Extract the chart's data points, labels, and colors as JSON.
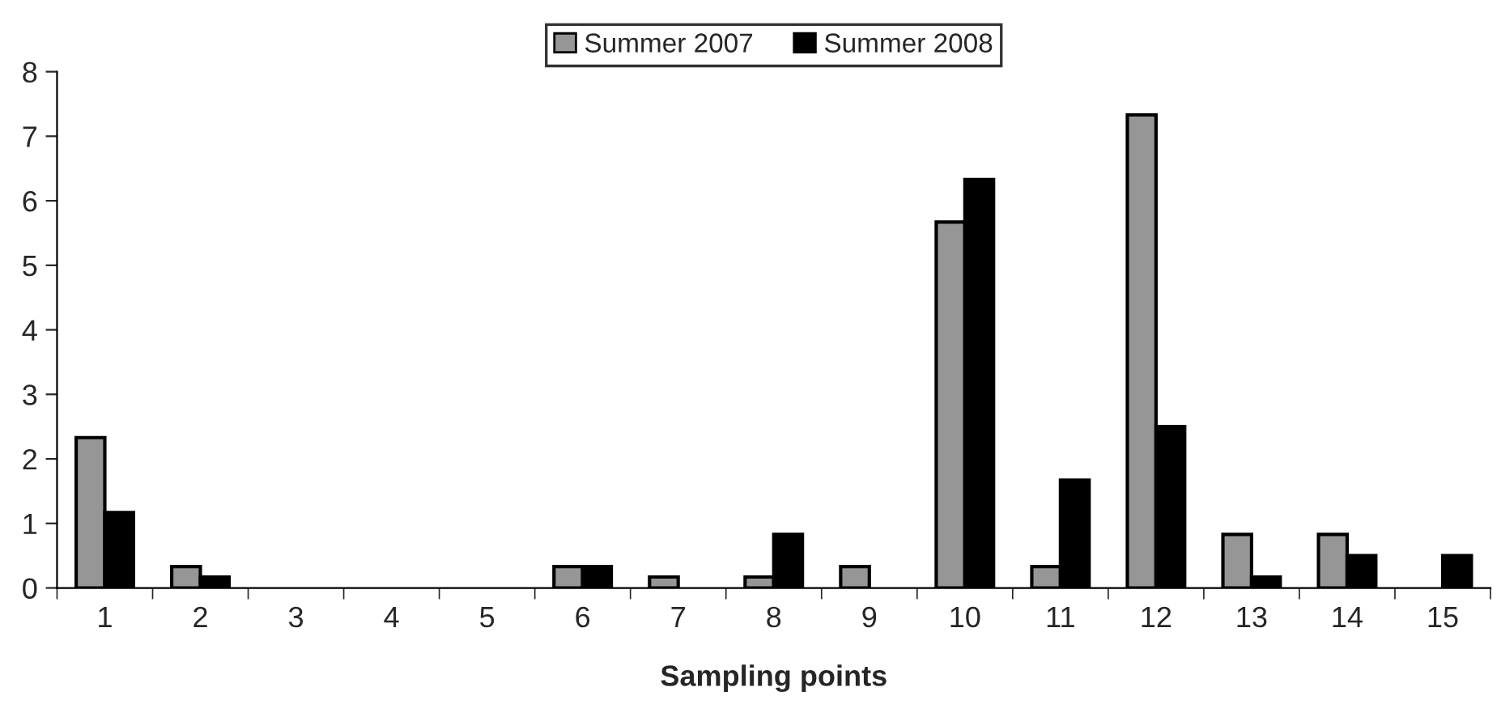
{
  "chart_data": {
    "type": "bar",
    "xlabel": "Sampling points",
    "categories": [
      "1",
      "2",
      "3",
      "4",
      "5",
      "6",
      "7",
      "8",
      "9",
      "10",
      "11",
      "12",
      "13",
      "14",
      "15"
    ],
    "series": [
      {
        "name": "Summer 2007",
        "color": "#969696",
        "values": [
          2.33,
          0.33,
          0,
          0,
          0,
          0.33,
          0.17,
          0.17,
          0.33,
          5.67,
          0.33,
          7.33,
          0.83,
          0.83,
          0
        ]
      },
      {
        "name": "Summer 2008",
        "color": "#000000",
        "values": [
          1.17,
          0.17,
          0,
          0,
          0,
          0.33,
          0,
          0.83,
          0,
          6.33,
          1.67,
          2.5,
          0.17,
          0.5,
          0.5
        ]
      }
    ],
    "ylim": [
      0,
      8
    ],
    "yticks": [
      0,
      1,
      2,
      3,
      4,
      5,
      6,
      7,
      8
    ],
    "grid": false,
    "legend": "top"
  }
}
